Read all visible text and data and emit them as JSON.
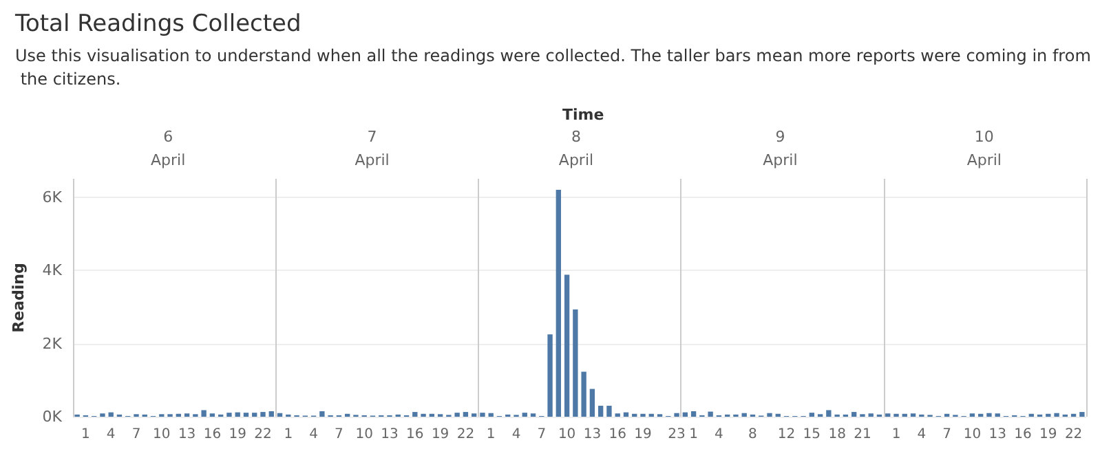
{
  "chart_data": {
    "type": "bar",
    "title": "Total Readings Collected",
    "subtitle": "Use this visualisation to understand when all the readings were collected. The taller bars mean more reports were coming in from the citizens.",
    "xlabel": "Time",
    "ylabel": "Reading",
    "annotations": [
      "6",
      "April",
      "7",
      "April",
      "8",
      "April",
      "9",
      "April",
      "10",
      "April"
    ],
    "categories": [
      null,
      "1",
      null,
      null,
      "4",
      null,
      null,
      "7",
      null,
      null,
      "10",
      null,
      null,
      "13",
      null,
      null,
      "16",
      null,
      null,
      "19",
      null,
      null,
      "22",
      null,
      null,
      "1",
      null,
      null,
      "4",
      null,
      null,
      "7",
      null,
      null,
      "10",
      null,
      null,
      "13",
      null,
      null,
      "16",
      null,
      null,
      "19",
      null,
      null,
      "22",
      null,
      null,
      "1",
      null,
      null,
      "4",
      null,
      null,
      "7",
      null,
      null,
      "10",
      null,
      null,
      "13",
      null,
      null,
      "16",
      null,
      null,
      "19",
      null,
      null,
      null,
      "23",
      null,
      "1",
      null,
      null,
      "4",
      null,
      null,
      null,
      "8",
      null,
      null,
      null,
      "12",
      null,
      null,
      "15",
      null,
      null,
      "18",
      null,
      null,
      "21",
      null,
      null,
      null,
      "1",
      null,
      null,
      "4",
      null,
      null,
      "7",
      null,
      null,
      "10",
      null,
      null,
      "13",
      null,
      null,
      "16",
      null,
      null,
      "19",
      null,
      null,
      "22",
      null
    ],
    "values": [
      60,
      40,
      20,
      90,
      120,
      60,
      20,
      70,
      60,
      20,
      70,
      70,
      80,
      90,
      70,
      180,
      90,
      60,
      110,
      120,
      110,
      110,
      130,
      150,
      100,
      60,
      40,
      30,
      30,
      150,
      40,
      40,
      80,
      50,
      40,
      30,
      40,
      40,
      60,
      40,
      130,
      80,
      80,
      70,
      50,
      110,
      130,
      90,
      110,
      100,
      20,
      60,
      50,
      110,
      90,
      20,
      2250,
      6200,
      3880,
      2930,
      1230,
      760,
      300,
      300,
      90,
      120,
      80,
      80,
      80,
      70,
      20,
      100,
      120,
      150,
      40,
      140,
      40,
      60,
      60,
      100,
      60,
      30,
      100,
      80,
      20,
      20,
      20,
      110,
      70,
      180,
      60,
      60,
      130,
      70,
      90,
      60,
      90,
      80,
      80,
      90,
      60,
      50,
      20,
      80,
      50,
      20,
      90,
      80,
      100,
      90,
      20,
      40,
      20,
      80,
      60,
      80,
      100,
      60,
      80,
      130
    ],
    "color": "#4e79a7",
    "ylim": [
      0,
      6500
    ],
    "yticks": [
      {
        "value": 0,
        "label": "0K"
      },
      {
        "value": 2000,
        "label": "2K"
      },
      {
        "value": 4000,
        "label": "4K"
      },
      {
        "value": 6000,
        "label": "6K"
      }
    ],
    "grid": "y"
  }
}
